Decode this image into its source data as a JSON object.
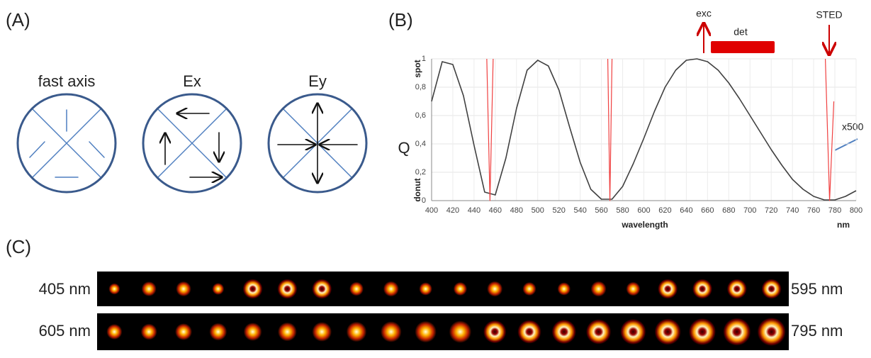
{
  "panel_a": {
    "label": "(A)",
    "captions": [
      "fast axis",
      "Ex",
      "Ey"
    ]
  },
  "chart_data": {
    "type": "line",
    "label": "(B)",
    "ylabel": "Q",
    "ylabel_top": "spot",
    "ylabel_bottom": "donut",
    "xlabel": "wavelength",
    "xunit": "nm",
    "annotations": {
      "exc": "exc",
      "det": "det",
      "sted": "STED",
      "magnification": "x500"
    },
    "x": [
      400,
      410,
      420,
      430,
      440,
      450,
      460,
      470,
      480,
      490,
      500,
      510,
      520,
      530,
      540,
      550,
      560,
      570,
      580,
      590,
      600,
      610,
      620,
      630,
      640,
      650,
      660,
      670,
      680,
      690,
      700,
      710,
      720,
      730,
      740,
      750,
      760,
      770,
      780,
      790,
      800
    ],
    "series": [
      {
        "color": "#404040",
        "values": [
          0.7,
          0.98,
          0.96,
          0.74,
          0.39,
          0.06,
          0.04,
          0.3,
          0.65,
          0.92,
          0.99,
          0.95,
          0.78,
          0.52,
          0.27,
          0.08,
          0.01,
          0.01,
          0.1,
          0.26,
          0.44,
          0.63,
          0.8,
          0.92,
          0.99,
          1.0,
          0.98,
          0.92,
          0.83,
          0.72,
          0.6,
          0.48,
          0.36,
          0.25,
          0.15,
          0.08,
          0.03,
          0.005,
          0.005,
          0.03,
          0.07
        ]
      },
      {
        "color": "#f04040",
        "x": [
          452,
          453.5,
          455,
          456.5,
          458,
          462,
          566,
          567,
          568,
          569,
          570,
          574,
          771,
          773,
          775,
          777,
          779
        ],
        "values": [
          1,
          0.5,
          0,
          0.5,
          1,
          null,
          1,
          0.5,
          0,
          0.5,
          1,
          null,
          1,
          0.5,
          0,
          0.35,
          0.7
        ]
      }
    ],
    "xlim": [
      400,
      800
    ],
    "ylim": [
      0,
      1
    ],
    "xticks": [
      400,
      420,
      440,
      460,
      480,
      500,
      520,
      540,
      560,
      580,
      600,
      620,
      640,
      660,
      680,
      700,
      720,
      740,
      760,
      780,
      800
    ],
    "yticks": [
      0,
      {
        "value": 0.2,
        "label": "0,2"
      },
      {
        "value": 0.4,
        "label": "0,4"
      },
      {
        "value": 0.6,
        "label": "0,6"
      },
      {
        "value": 0.8,
        "label": "0,8"
      },
      1
    ],
    "grid": true
  },
  "panel_c": {
    "label": "(C)",
    "rows": [
      {
        "start": "405 nm",
        "end": "595 nm"
      },
      {
        "start": "605 nm",
        "end": "795 nm"
      }
    ]
  }
}
